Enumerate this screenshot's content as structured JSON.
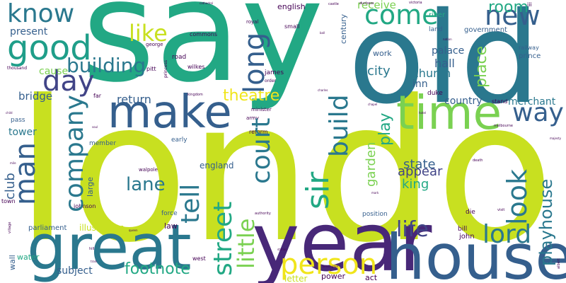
{
  "palette": {
    "teal": "#2a788e",
    "green": "#22a884",
    "lime": "#c8e020",
    "yellow": "#f0e51b",
    "purple": "#482878",
    "light_green": "#7ad151",
    "blue": "#355f8d",
    "violet": "#414487",
    "dark": "#440154"
  },
  "words": {
    "london": "london",
    "say": "say",
    "old": "old",
    "year": "year",
    "house": "house",
    "great": "great",
    "make": "make",
    "time": "time",
    "good": "good",
    "know": "know",
    "come": "come",
    "new": "new",
    "day": "day",
    "like": "like",
    "long": "long",
    "man": "man",
    "company": "company",
    "building": "building",
    "way": "way",
    "room": "room",
    "lord": "lord",
    "sir": "sir",
    "court": "court",
    "street": "street",
    "little": "little",
    "person": "person",
    "life": "life",
    "look": "look",
    "tell": "tell",
    "build": "build",
    "play": "play",
    "playhouse": "playhouse",
    "lane": "lane",
    "footnote": "footnote",
    "theatre": "theatre",
    "place": "place",
    "garden": "garden",
    "state": "state",
    "appear": "appear",
    "king": "king",
    "return": "return",
    "club": "club",
    "city": "city",
    "church": "church",
    "hall": "hall",
    "inn": "inn",
    "palace": "palace",
    "present": "present",
    "cause": "cause",
    "bridge": "bridge",
    "tower": "tower",
    "england": "england",
    "subject": "subject",
    "merchant": "merchant",
    "country": "country",
    "receive": "receive",
    "english": "english",
    "work": "work",
    "century": "century",
    "illustration": "illustration",
    "parliament": "parliament",
    "letter": "letter",
    "wall": "wall",
    "water": "water",
    "power": "power",
    "act": "act",
    "law": "law",
    "john": "john",
    "bill": "bill",
    "position": "position",
    "die": "die",
    "duke": "duke",
    "government": "government",
    "prince": "prince",
    "land": "land",
    "river": "river",
    "railway": "railway",
    "stand": "stand",
    "early": "early",
    "force": "force",
    "large": "large",
    "member": "member",
    "pass": "pass",
    "town": "town",
    "johnson": "johnson",
    "walpole": "walpole",
    "reform": "reform",
    "army": "army",
    "minister": "minister",
    "james": "james",
    "order": "order",
    "road": "road",
    "pitt": "pitt",
    "wilkes": "wilkes",
    "george": "george",
    "commons": "commons",
    "small": "small",
    "royal": "royal",
    "far": "far",
    "kingdom": "kingdom",
    "west": "west",
    "thousand": "thousand",
    "cathedral": "cathedral",
    "duchess": "duchess",
    "victoria": "victoria",
    "castle": "castle",
    "melbourne": "melbourne",
    "hotel": "hotel",
    "iii": "iii",
    "nation": "nation",
    "death": "death",
    "visit": "visit",
    "majesty": "majesty",
    "albert": "albert",
    "station": "station",
    "authority": "authority",
    "charles": "charles",
    "chapel": "chapel",
    "village": "village",
    "train": "train",
    "hill": "hill",
    "mile": "mile",
    "child": "child",
    "princess": "princess",
    "soul": "soul",
    "queen": "queen",
    "mark": "mark",
    "ball": "ball",
    "kensington": "kensington"
  }
}
